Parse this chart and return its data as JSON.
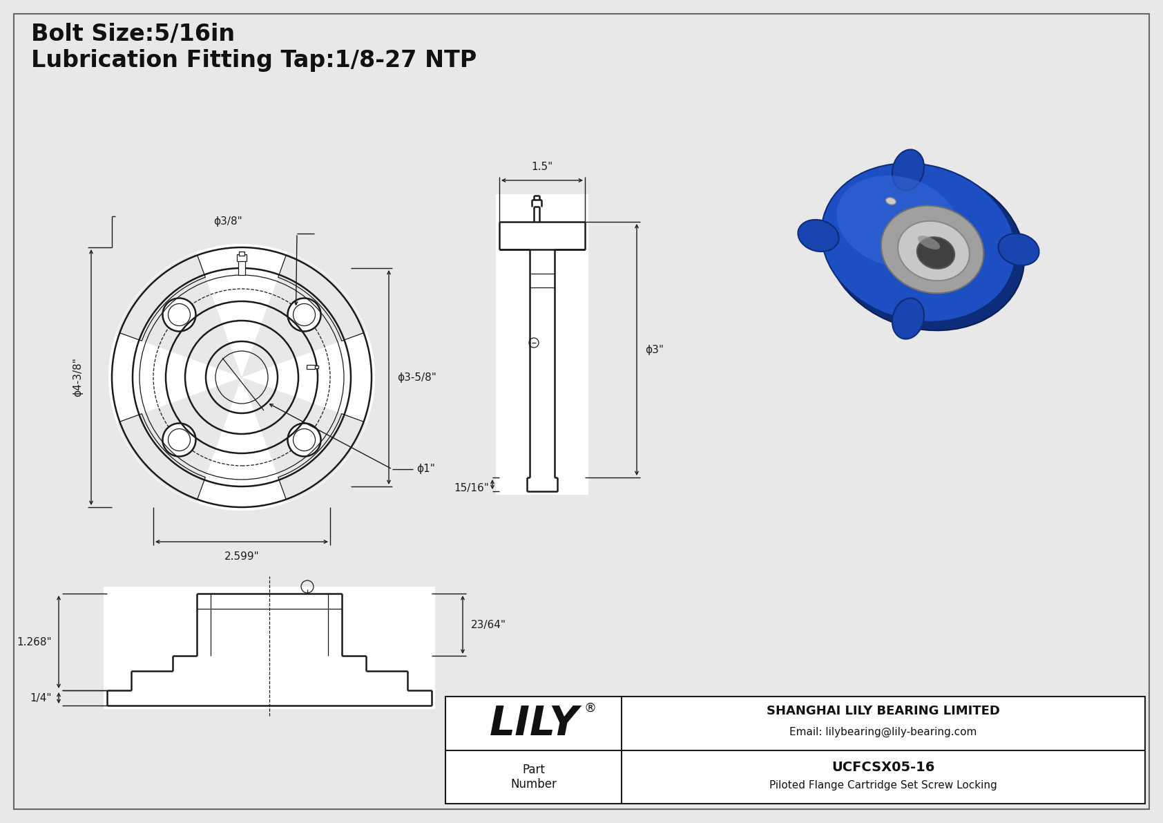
{
  "bg_color": "#e8e8e8",
  "line_color": "#1a1a1a",
  "white": "#ffffff",
  "blue_3d": "#1e4fc2",
  "blue_dark": "#0d2d7a",
  "blue_mid": "#2a5fd4",
  "silver": "#b8b8b8",
  "silver_dark": "#888888",
  "title_line1": "Bolt Size:5/16in",
  "title_line2": "Lubrication Fitting Tap:1/8-27 NTP",
  "dim_phi38": "ϕ3/8\"",
  "dim_phi438": "ϕ4-3/8\"",
  "dim_phi358": "ϕ3-5/8\"",
  "dim_phi1": "ϕ1\"",
  "dim_2599": "2.599\"",
  "dim_15": "1.5\"",
  "dim_phi3": "ϕ3\"",
  "dim_1516": "15/16\"",
  "dim_1268": "1.268\"",
  "dim_2364": "23/64\"",
  "dim_14": "1/4\"",
  "company_lily": "LILY",
  "company_reg": "®",
  "company_full": "SHANGHAI LILY BEARING LIMITED",
  "email": "Email: lilybearing@lily-bearing.com",
  "part_number_label": "Part\nNumber",
  "part_number": "UCFCSX05-16",
  "part_desc": "Piloted Flange Cartridge Set Screw Locking"
}
